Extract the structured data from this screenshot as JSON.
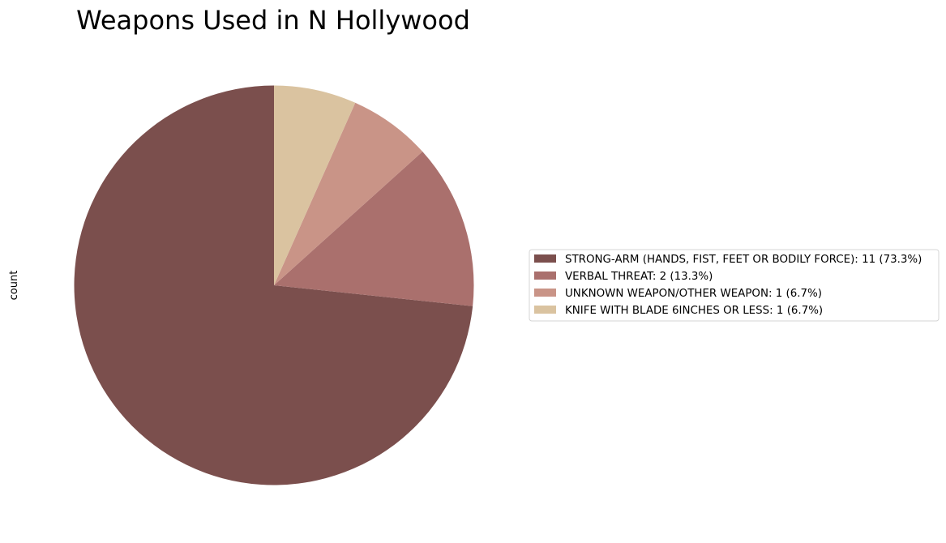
{
  "chart_data": {
    "type": "pie",
    "title": "Weapons Used in N Hollywood",
    "ylabel": "count",
    "start_angle_deg": 90,
    "direction": "counterclockwise",
    "legend_position": "center-right",
    "slices": [
      {
        "label": "STRONG-ARM (HANDS, FIST, FEET OR BODILY FORCE)",
        "value": 11,
        "percent": 73.3,
        "color": "#7b4f4d",
        "legend_text": "STRONG-ARM (HANDS, FIST, FEET OR BODILY FORCE): 11 (73.3%)"
      },
      {
        "label": "VERBAL THREAT",
        "value": 2,
        "percent": 13.3,
        "color": "#aa706d",
        "legend_text": "VERBAL THREAT: 2 (13.3%)"
      },
      {
        "label": "UNKNOWN WEAPON/OTHER WEAPON",
        "value": 1,
        "percent": 6.7,
        "color": "#c99487",
        "legend_text": "UNKNOWN WEAPON/OTHER WEAPON: 1 (6.7%)"
      },
      {
        "label": "KNIFE WITH BLADE 6INCHES OR LESS",
        "value": 1,
        "percent": 6.7,
        "color": "#dac3a0",
        "legend_text": "KNIFE WITH BLADE 6INCHES OR LESS: 1 (6.7%)"
      }
    ]
  }
}
